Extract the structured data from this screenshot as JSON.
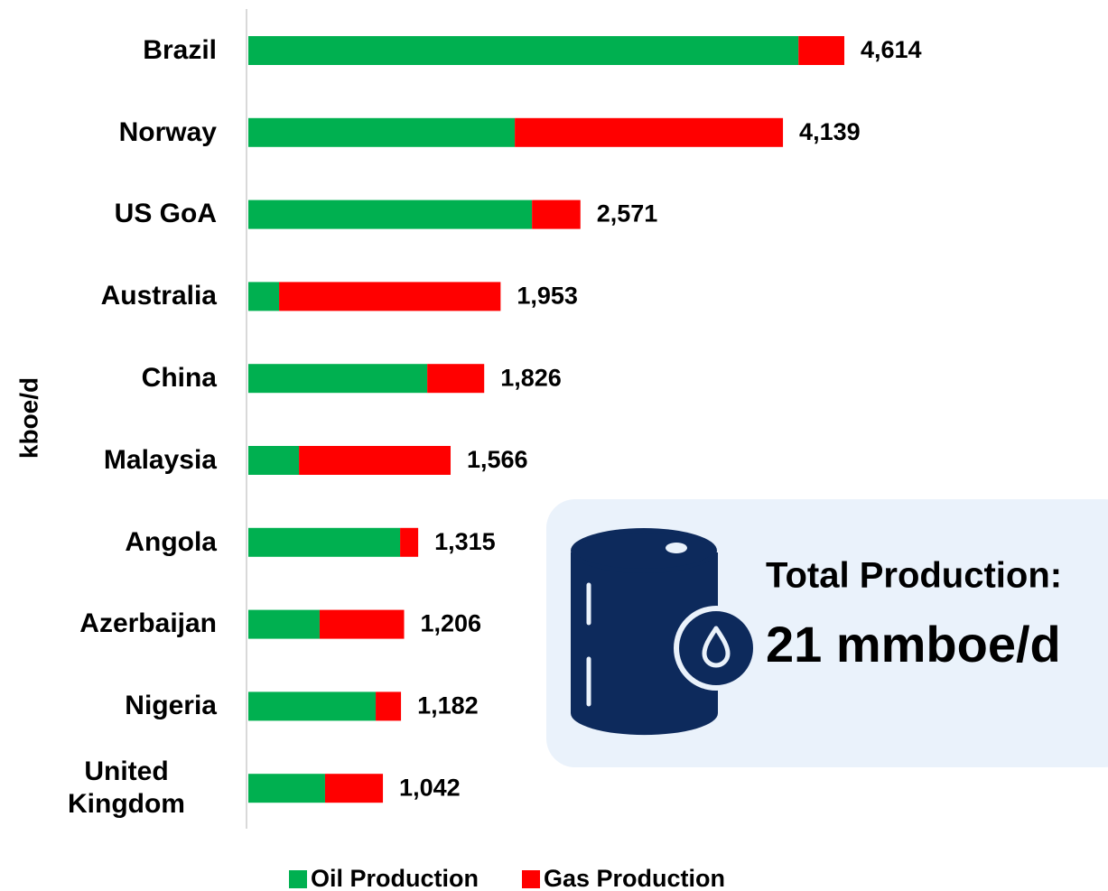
{
  "chart_data": {
    "type": "bar",
    "orientation": "horizontal",
    "stacked": true,
    "ylabel": "kboe/d",
    "categories": [
      "Brazil",
      "Norway",
      "US GoA",
      "Australia",
      "China",
      "Malaysia",
      "Angola",
      "Azerbaijan",
      "Nigeria",
      "United Kingdom"
    ],
    "series": [
      {
        "name": "Oil Production",
        "color": "#00b050",
        "values": [
          4259,
          2063,
          2196,
          238,
          1385,
          392,
          1175,
          552,
          986,
          594
        ]
      },
      {
        "name": "Gas Production",
        "color": "#ff0000",
        "values": [
          355,
          2076,
          375,
          1715,
          441,
          1174,
          140,
          654,
          196,
          448
        ]
      }
    ],
    "totals": [
      4614,
      4139,
      2571,
      1953,
      1826,
      1566,
      1315,
      1206,
      1182,
      1042
    ],
    "total_labels": [
      "4,614",
      "4,139",
      "2,571",
      "1,953",
      "1,826",
      "1,566",
      "1,315",
      "1,206",
      "1,182",
      "1,042"
    ],
    "annotations": [
      "Total Production:",
      "21 mmboe/d"
    ]
  }
}
